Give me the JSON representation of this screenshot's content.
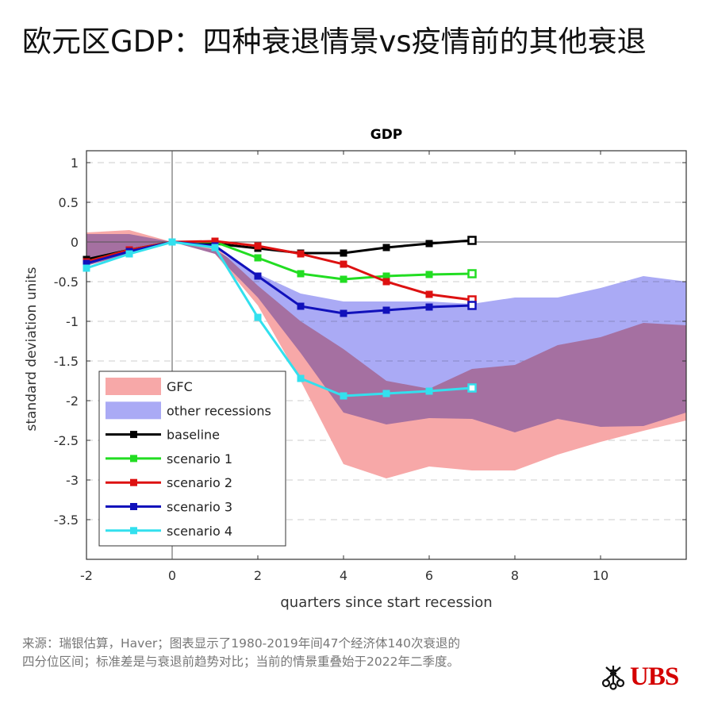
{
  "title": "欧元区GDP：四种衰退情景vs疫情前的其他衰退",
  "note": "来源：瑞银估算，Haver；图表显示了1980-2019年间47个经济体140次衰退的四分位区间；标准差是与衰退前趋势对比；当前的情景重叠始于2022年二季度。",
  "logo": "UBS",
  "chart_data": {
    "type": "line",
    "title": "GDP",
    "xlabel": "quarters since start recession",
    "ylabel": "standard deviation units",
    "xlim": [
      -2,
      12
    ],
    "ylim": [
      -4,
      1.15
    ],
    "xticks": [
      -2,
      0,
      2,
      4,
      6,
      8,
      10
    ],
    "yticks": [
      1,
      0.5,
      0,
      -0.5,
      -1,
      -1.5,
      -2,
      -2.5,
      -3,
      -3.5
    ],
    "grid": "horizontal dashed",
    "legend_position": "bottom-left",
    "bands": [
      {
        "name": "GFC",
        "color": "#f7a8a8",
        "x": [
          -2,
          -1,
          0,
          1,
          2,
          3,
          4,
          5,
          6,
          7,
          8,
          9,
          10,
          11,
          12
        ],
        "upper": [
          0.12,
          0.15,
          0,
          -0.05,
          -0.55,
          -1.0,
          -1.35,
          -1.75,
          -1.85,
          -1.6,
          -1.55,
          -1.3,
          -1.2,
          -1.02,
          -1.05
        ],
        "lower": [
          -0.3,
          -0.15,
          0,
          -0.15,
          -0.8,
          -1.75,
          -2.8,
          -2.98,
          -2.83,
          -2.88,
          -2.88,
          -2.68,
          -2.52,
          -2.38,
          -2.25
        ]
      },
      {
        "name": "other recessions",
        "color": "#aaaaf5",
        "x": [
          -2,
          -1,
          0,
          1,
          2,
          3,
          4,
          5,
          6,
          7,
          8,
          9,
          10,
          11,
          12
        ],
        "upper": [
          0.1,
          0.1,
          0,
          -0.1,
          -0.4,
          -0.65,
          -0.75,
          -0.75,
          -0.75,
          -0.78,
          -0.7,
          -0.7,
          -0.58,
          -0.43,
          -0.5
        ],
        "lower": [
          -0.3,
          -0.15,
          0,
          -0.15,
          -0.7,
          -1.4,
          -2.15,
          -2.3,
          -2.22,
          -2.23,
          -2.4,
          -2.23,
          -2.33,
          -2.32,
          -2.15
        ]
      }
    ],
    "x": [
      -2,
      -1,
      0,
      1,
      2,
      3,
      4,
      5,
      6,
      7
    ],
    "series": [
      {
        "name": "baseline",
        "color": "#000000",
        "values": [
          -0.22,
          -0.1,
          0,
          -0.02,
          -0.08,
          -0.14,
          -0.14,
          -0.07,
          -0.02,
          0.02
        ]
      },
      {
        "name": "scenario 1",
        "color": "#22dd22",
        "values": [
          -0.25,
          -0.1,
          0,
          0,
          -0.2,
          -0.4,
          -0.47,
          -0.43,
          -0.41,
          -0.4
        ]
      },
      {
        "name": "scenario 2",
        "color": "#dd1111",
        "values": [
          -0.25,
          -0.1,
          0,
          0.01,
          -0.05,
          -0.15,
          -0.28,
          -0.5,
          -0.66,
          -0.73
        ]
      },
      {
        "name": "scenario 3",
        "color": "#1111bb",
        "values": [
          -0.27,
          -0.12,
          0,
          -0.05,
          -0.43,
          -0.81,
          -0.9,
          -0.86,
          -0.82,
          -0.8
        ]
      },
      {
        "name": "scenario 4",
        "color": "#33e0ee",
        "values": [
          -0.33,
          -0.15,
          0,
          -0.07,
          -0.95,
          -1.72,
          -1.94,
          -1.91,
          -1.88,
          -1.84
        ]
      }
    ]
  }
}
